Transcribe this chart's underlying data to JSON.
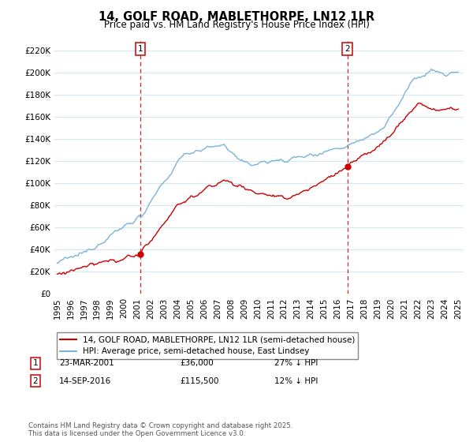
{
  "title": "14, GOLF ROAD, MABLETHORPE, LN12 1LR",
  "subtitle": "Price paid vs. HM Land Registry's House Price Index (HPI)",
  "legend_line1": "14, GOLF ROAD, MABLETHORPE, LN12 1LR (semi-detached house)",
  "legend_line2": "HPI: Average price, semi-detached house, East Lindsey",
  "footnote": "Contains HM Land Registry data © Crown copyright and database right 2025.\nThis data is licensed under the Open Government Licence v3.0.",
  "sale1_label": "1",
  "sale1_date": "23-MAR-2001",
  "sale1_price": "£36,000",
  "sale1_hpi": "27% ↓ HPI",
  "sale1_year": 2001.22,
  "sale1_value": 36000,
  "sale2_label": "2",
  "sale2_date": "14-SEP-2016",
  "sale2_price": "£115,500",
  "sale2_hpi": "12% ↓ HPI",
  "sale2_year": 2016.71,
  "sale2_value": 115500,
  "hpi_color": "#7ab4d8",
  "price_color": "#cc0000",
  "vline_color": "#cc0000",
  "ylim": [
    0,
    230000
  ],
  "yticks": [
    0,
    20000,
    40000,
    60000,
    80000,
    100000,
    120000,
    140000,
    160000,
    180000,
    200000,
    220000
  ],
  "background_color": "#ffffff",
  "grid_color": "#d8e8f0"
}
